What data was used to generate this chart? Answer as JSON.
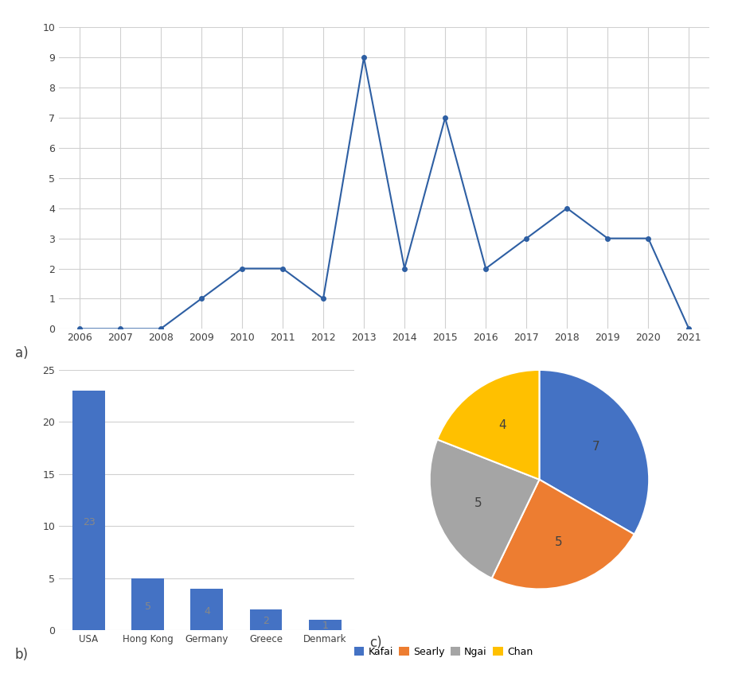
{
  "line_years": [
    2006,
    2007,
    2008,
    2009,
    2010,
    2011,
    2012,
    2013,
    2014,
    2015,
    2016,
    2017,
    2018,
    2019,
    2020,
    2021
  ],
  "line_values": [
    0,
    0,
    0,
    1,
    2,
    2,
    1,
    9,
    2,
    7,
    2,
    3,
    4,
    3,
    3,
    0
  ],
  "line_color": "#2e5fa3",
  "line_ylim": [
    0,
    10
  ],
  "line_yticks": [
    0,
    1,
    2,
    3,
    4,
    5,
    6,
    7,
    8,
    9,
    10
  ],
  "bar_categories": [
    "USA",
    "Hong Kong",
    "Germany",
    "Greece",
    "Denmark"
  ],
  "bar_values": [
    23,
    5,
    4,
    2,
    1
  ],
  "bar_color": "#4472c4",
  "bar_ylim": [
    0,
    25
  ],
  "bar_yticks": [
    0,
    5,
    10,
    15,
    20,
    25
  ],
  "pie_labels": [
    "Kafai",
    "Searly",
    "Ngai",
    "Chan"
  ],
  "pie_values": [
    7,
    5,
    5,
    4
  ],
  "pie_colors": [
    "#4472c4",
    "#ed7d31",
    "#a5a5a5",
    "#ffc000"
  ],
  "pie_startangle": 90,
  "label_a": "a)",
  "label_b": "b)",
  "label_c": "c)",
  "bg_color": "#ffffff",
  "grid_color": "#d0d0d0",
  "font_color": "#404040",
  "marker_style": "o",
  "marker_size": 4,
  "label_fontsize": 12
}
